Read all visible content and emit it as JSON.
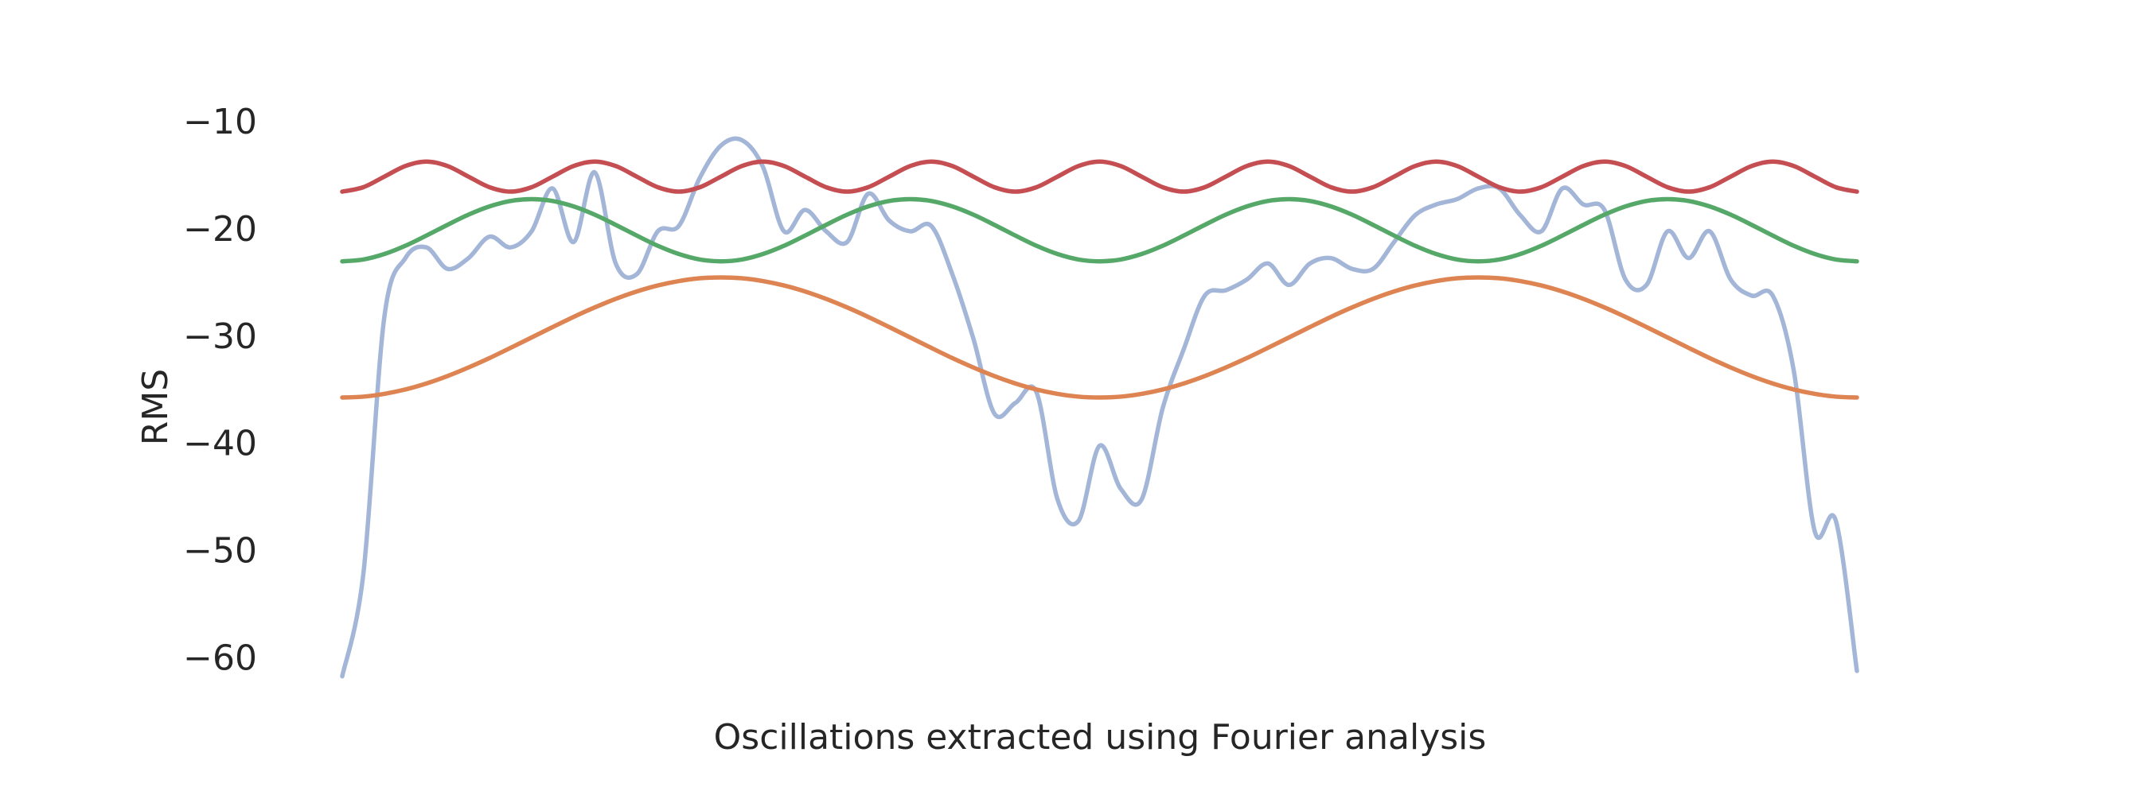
{
  "chart_data": {
    "type": "line",
    "xlabel": "Oscillations extracted using Fourier analysis",
    "ylabel": "RMS",
    "ylim": [
      -65.6,
      -7.4
    ],
    "yticks": [
      {
        "value": -10,
        "label": "−10"
      },
      {
        "value": -20,
        "label": "−20"
      },
      {
        "value": -30,
        "label": "−30"
      },
      {
        "value": -40,
        "label": "−40"
      },
      {
        "value": -50,
        "label": "−50"
      },
      {
        "value": -60,
        "label": "−60"
      }
    ],
    "grid": false,
    "series": [
      {
        "color": "#a3b6d8",
        "values": [
          -61.5,
          -52,
          -28,
          -22.5,
          -21.5,
          -23.5,
          -22.5,
          -20.5,
          -21.5,
          -20,
          -16,
          -21,
          -14.5,
          -23,
          -24,
          -20,
          -19.5,
          -15,
          -12,
          -11.5,
          -14,
          -20,
          -18,
          -20,
          -21,
          -16.5,
          -19,
          -20,
          -19.5,
          -24,
          -30,
          -37,
          -36,
          -35,
          -45,
          -47,
          -40,
          -44,
          -45,
          -36.5,
          -31,
          -26,
          -25.5,
          -24.5,
          -23,
          -25,
          -23,
          -22.5,
          -23.5,
          -23.5,
          -21,
          -18.5,
          -17.5,
          -17,
          -16,
          -16,
          -18.5,
          -20,
          -16,
          -17.5,
          -18,
          -24.5,
          -25,
          -20,
          -22.5,
          -20,
          -24.5,
          -26,
          -26,
          -33,
          -48,
          -47,
          -61
        ]
      },
      {
        "color": "#dd8452",
        "values": [
          -35.5,
          -35.42,
          -35.16,
          -34.75,
          -34.19,
          -33.5,
          -32.7,
          -31.82,
          -30.87,
          -29.9,
          -28.93,
          -27.98,
          -27.1,
          -26.3,
          -25.61,
          -25.05,
          -24.64,
          -24.38,
          -24.3,
          -24.38,
          -24.64,
          -25.05,
          -25.61,
          -26.3,
          -27.1,
          -27.98,
          -28.93,
          -29.9,
          -30.87,
          -31.82,
          -32.7,
          -33.5,
          -34.19,
          -34.75,
          -35.16,
          -35.42,
          -35.5,
          -35.42,
          -35.16,
          -34.75,
          -34.19,
          -33.5,
          -32.7,
          -31.82,
          -30.87,
          -29.9,
          -28.93,
          -27.98,
          -27.1,
          -26.3,
          -25.61,
          -25.05,
          -24.64,
          -24.38,
          -24.3,
          -24.38,
          -24.64,
          -25.05,
          -25.61,
          -26.3,
          -27.1,
          -27.98,
          -28.93,
          -29.9,
          -30.87,
          -31.82,
          -32.7,
          -33.5,
          -34.19,
          -34.75,
          -35.16,
          -35.42,
          -35.5
        ]
      },
      {
        "color": "#55a868",
        "values": [
          -22.8,
          -22.63,
          -22.12,
          -21.35,
          -20.4,
          -19.4,
          -18.45,
          -17.68,
          -17.17,
          -17.0,
          -17.17,
          -17.68,
          -18.45,
          -19.4,
          -20.4,
          -21.35,
          -22.12,
          -22.63,
          -22.8,
          -22.63,
          -22.12,
          -21.35,
          -20.4,
          -19.4,
          -18.45,
          -17.68,
          -17.17,
          -17.0,
          -17.17,
          -17.68,
          -18.45,
          -19.4,
          -20.4,
          -21.35,
          -22.12,
          -22.63,
          -22.8,
          -22.63,
          -22.12,
          -21.35,
          -20.4,
          -19.4,
          -18.45,
          -17.68,
          -17.17,
          -17.0,
          -17.17,
          -17.68,
          -18.45,
          -19.4,
          -20.4,
          -21.35,
          -22.12,
          -22.63,
          -22.8,
          -22.63,
          -22.12,
          -21.35,
          -20.4,
          -19.4,
          -18.45,
          -17.68,
          -17.17,
          -17.0,
          -17.17,
          -17.68,
          -18.45,
          -19.4,
          -20.4,
          -21.35,
          -22.12,
          -22.63,
          -22.8
        ]
      },
      {
        "color": "#c44e52",
        "values": [
          -16.3,
          -15.89,
          -14.9,
          -13.91,
          -13.5,
          -13.91,
          -14.9,
          -15.89,
          -16.3,
          -15.89,
          -14.9,
          -13.91,
          -13.5,
          -13.91,
          -14.9,
          -15.89,
          -16.3,
          -15.89,
          -14.9,
          -13.91,
          -13.5,
          -13.91,
          -14.9,
          -15.89,
          -16.3,
          -15.89,
          -14.9,
          -13.91,
          -13.5,
          -13.91,
          -14.9,
          -15.89,
          -16.3,
          -15.89,
          -14.9,
          -13.91,
          -13.5,
          -13.91,
          -14.9,
          -15.89,
          -16.3,
          -15.89,
          -14.9,
          -13.91,
          -13.5,
          -13.91,
          -14.9,
          -15.89,
          -16.3,
          -15.89,
          -14.9,
          -13.91,
          -13.5,
          -13.91,
          -14.9,
          -15.89,
          -16.3,
          -15.89,
          -14.9,
          -13.91,
          -13.5,
          -13.91,
          -14.9,
          -15.89,
          -16.3,
          -15.89,
          -14.9,
          -13.91,
          -13.5,
          -13.91,
          -14.9,
          -15.89,
          -16.3
        ]
      }
    ]
  }
}
